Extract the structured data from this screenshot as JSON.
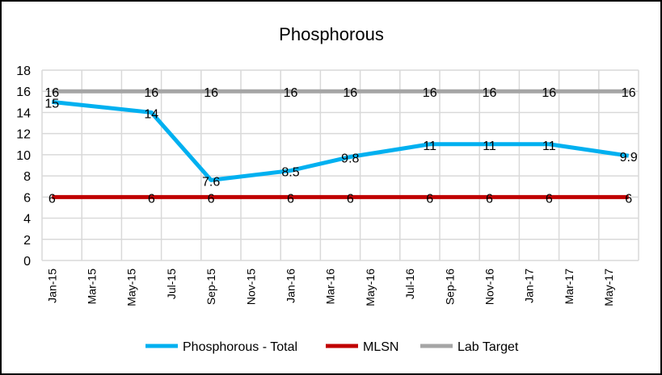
{
  "chart_data": {
    "type": "line",
    "title": "Phosphorous",
    "xlabel": "",
    "ylabel": "",
    "ylim": [
      0,
      18
    ],
    "yticks": [
      0,
      2,
      4,
      6,
      8,
      10,
      12,
      14,
      16,
      18
    ],
    "xrange": [
      "Jan-15",
      "Jun-17"
    ],
    "xtick_labels": [
      "Jan-15",
      "Mar-15",
      "May-15",
      "Jul-15",
      "Sep-15",
      "Nov-15",
      "Jan-16",
      "Mar-16",
      "May-16",
      "Jul-16",
      "Sep-16",
      "Nov-16",
      "Jan-17",
      "Mar-17",
      "May-17"
    ],
    "x": [
      "Jan-15",
      "Jun-15",
      "Sep-15",
      "Jan-16",
      "Apr-16",
      "Aug-16",
      "Nov-16",
      "Feb-17",
      "Jun-17"
    ],
    "grid": true,
    "legend_position": "bottom",
    "series": [
      {
        "name": "Phosphorous - Total",
        "color": "#00B0F0",
        "values": [
          15,
          14,
          7.6,
          8.5,
          9.8,
          11,
          11,
          11,
          9.9
        ]
      },
      {
        "name": "MLSN",
        "color": "#C00000",
        "values": [
          6,
          6,
          6,
          6,
          6,
          6,
          6,
          6,
          6
        ]
      },
      {
        "name": "Lab Target",
        "color": "#A5A5A5",
        "values": [
          16,
          16,
          16,
          16,
          16,
          16,
          16,
          16,
          16
        ]
      }
    ],
    "data_labels": true
  }
}
